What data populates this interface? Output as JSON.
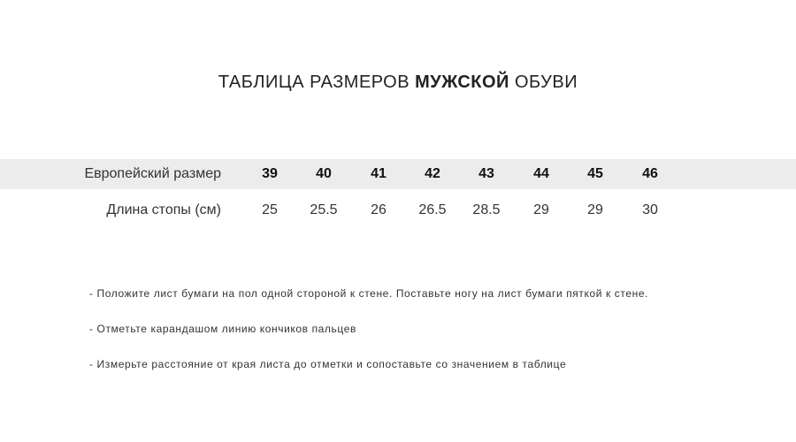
{
  "title": {
    "prefix": "ТАБЛИЦА РАЗМЕРОВ ",
    "bold": "МУЖСКОЙ",
    "suffix": " ОБУВИ"
  },
  "table": {
    "header_label": "Европейский размер",
    "sizes": [
      "39",
      "40",
      "41",
      "42",
      "43",
      "44",
      "45",
      "46"
    ],
    "length_label": "Длина стопы (см)",
    "lengths": [
      "25",
      "25.5",
      "26",
      "26.5",
      "28.5",
      "29",
      "29",
      "30"
    ]
  },
  "notes": [
    "- Положите лист бумаги на пол одной стороной к стене. Поставьте ногу на лист бумаги пяткой к стене.",
    "- Отметьте карандашом линию кончиков пальцев",
    "- Измерьте расстояние от края листа до отметки и сопоставьте со значением в таблице"
  ],
  "colors": {
    "band": "#ececec",
    "text": "#222222"
  }
}
